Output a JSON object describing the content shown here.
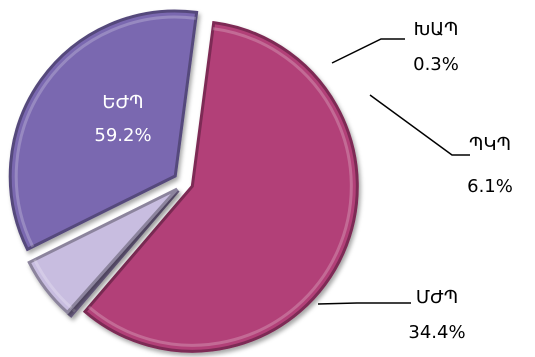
{
  "chart_data": {
    "type": "pie",
    "title": "",
    "slices": [
      {
        "label": "ԵԺՊ",
        "value": 59.2,
        "value_label": "59.2%",
        "color": "#b23f78"
      },
      {
        "label": "ԽԱՊ",
        "value": 0.3,
        "value_label": "0.3%",
        "color": "#a18fc3"
      },
      {
        "label": "ՊԿՊ",
        "value": 6.1,
        "value_label": "6.1%",
        "color": "#c8bde0"
      },
      {
        "label": "ՄԺՊ",
        "value": 34.4,
        "value_label": "34.4%",
        "color": "#7a67b0"
      }
    ],
    "legend": "none",
    "data_labels": "category and percent"
  },
  "colors": {
    "inside_label": "#ffffff",
    "outside_label": "#000000",
    "leader_line": "#000000"
  }
}
